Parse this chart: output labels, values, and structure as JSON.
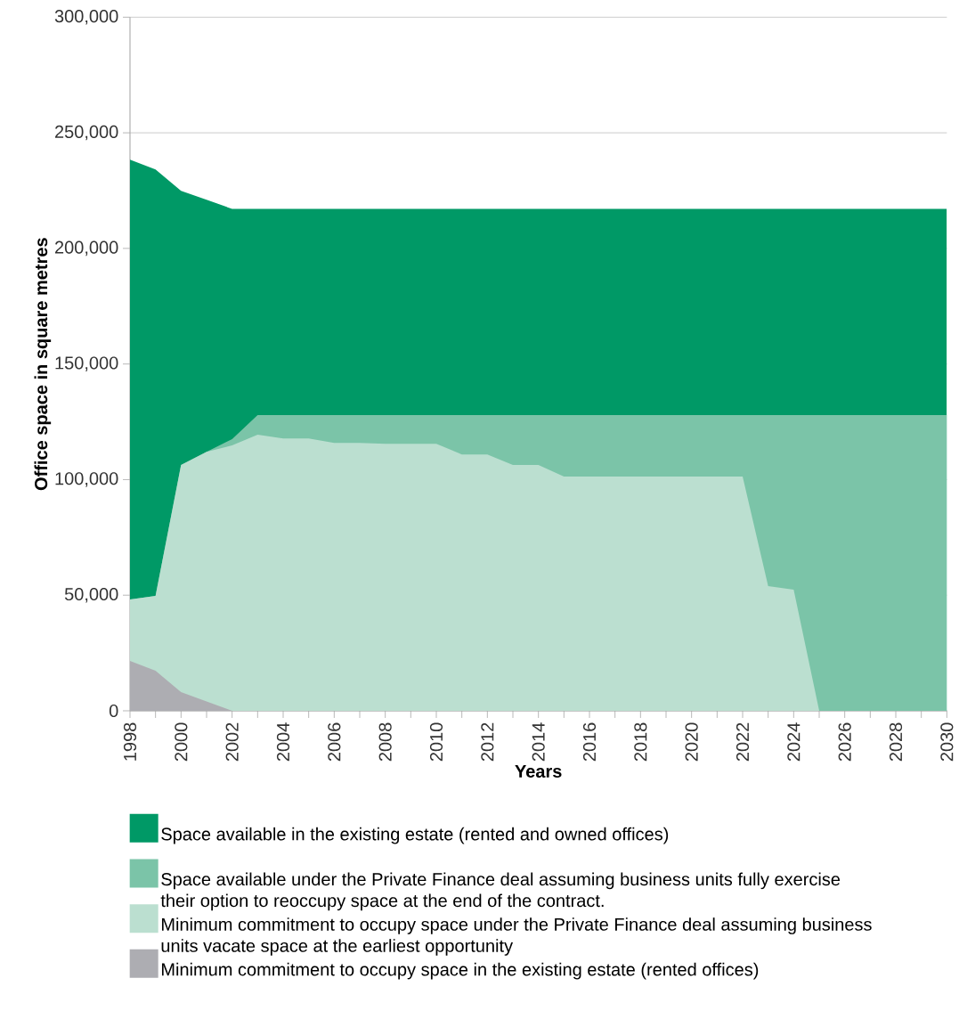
{
  "chart_data": {
    "type": "area",
    "xlabel": "Years",
    "ylabel": "Office space in square metres",
    "x": [
      1998,
      1999,
      2000,
      2001,
      2002,
      2003,
      2004,
      2005,
      2006,
      2007,
      2008,
      2009,
      2010,
      2011,
      2012,
      2013,
      2014,
      2015,
      2016,
      2017,
      2018,
      2019,
      2020,
      2021,
      2022,
      2023,
      2024,
      2025,
      2026,
      2027,
      2028,
      2029,
      2030
    ],
    "series": [
      {
        "name": "Space available in the existing estate (rented and owned offices)",
        "color": "#009966",
        "values": [
          238400,
          234100,
          224900,
          221000,
          217100,
          217100,
          217100,
          217100,
          217100,
          217100,
          217100,
          217100,
          217100,
          217100,
          217100,
          217100,
          217100,
          217100,
          217100,
          217100,
          217100,
          217100,
          217100,
          217100,
          217100,
          217100,
          217100,
          217100,
          217100,
          217100,
          217100,
          217100,
          217100
        ]
      },
      {
        "name": "Space available under the Private Finance deal assuming business units fully exercise their option to reoccupy space at the end of the contract.",
        "color": "#7bc4a8",
        "values": [
          48200,
          49700,
          106300,
          112000,
          117500,
          127900,
          127900,
          127900,
          127900,
          127900,
          127900,
          127900,
          127900,
          127900,
          127900,
          127900,
          127900,
          127900,
          127900,
          127900,
          127900,
          127900,
          127900,
          127900,
          127900,
          127900,
          127900,
          127900,
          127900,
          127900,
          127900,
          127900,
          127900
        ]
      },
      {
        "name": "Minimum commitment to occupy space under the Private Finance deal assuming business units vacate space at the earliest opportunity",
        "color": "#bbdfd0",
        "values": [
          48200,
          49700,
          106300,
          112000,
          114800,
          119400,
          117800,
          117800,
          115900,
          115900,
          115500,
          115500,
          115500,
          110900,
          110900,
          106300,
          106300,
          101300,
          101300,
          101300,
          101300,
          101300,
          101300,
          101300,
          101300,
          53900,
          52400,
          0,
          0,
          0,
          0,
          0,
          0
        ]
      },
      {
        "name": "Minimum commitment to occupy space in the existing estate (rented offices)",
        "color": "#adadb2",
        "values": [
          21600,
          17300,
          8100,
          4000,
          0,
          0,
          0,
          0,
          0,
          0,
          0,
          0,
          0,
          0,
          0,
          0,
          0,
          0,
          0,
          0,
          0,
          0,
          0,
          0,
          0,
          0,
          0,
          0,
          0,
          0,
          0,
          0,
          0
        ]
      }
    ],
    "xlim": [
      1998,
      2030
    ],
    "xticks": [
      1998,
      {
        "value": 1999,
        "label": null
      },
      2000,
      {
        "value": 2001,
        "label": null
      },
      2002,
      {
        "value": 2003,
        "label": null
      },
      2004,
      {
        "value": 2005,
        "label": null
      },
      2006,
      {
        "value": 2007,
        "label": null
      },
      2008,
      {
        "value": 2009,
        "label": null
      },
      2010,
      {
        "value": 2011,
        "label": null
      },
      2012,
      {
        "value": 2013,
        "label": null
      },
      2014,
      {
        "value": 2015,
        "label": null
      },
      2016,
      {
        "value": 2017,
        "label": null
      },
      2018,
      {
        "value": 2019,
        "label": null
      },
      2020,
      {
        "value": 2021,
        "label": null
      },
      2022,
      {
        "value": 2023,
        "label": null
      },
      2024,
      {
        "value": 2025,
        "label": null
      },
      2026,
      {
        "value": 2027,
        "label": null
      },
      2028,
      {
        "value": 2029,
        "label": null
      },
      2030
    ],
    "ylim": [
      0,
      300000
    ],
    "yticks": [
      0,
      {
        "value": 50000,
        "label": "50,000"
      },
      {
        "value": 100000,
        "label": "100,000"
      },
      {
        "value": 150000,
        "label": "150,000"
      },
      {
        "value": 200000,
        "label": "200,000"
      },
      {
        "value": 250000,
        "label": "250,000"
      },
      {
        "value": 300000,
        "label": "300,000"
      }
    ],
    "grid": "y",
    "legend": "bottom"
  }
}
